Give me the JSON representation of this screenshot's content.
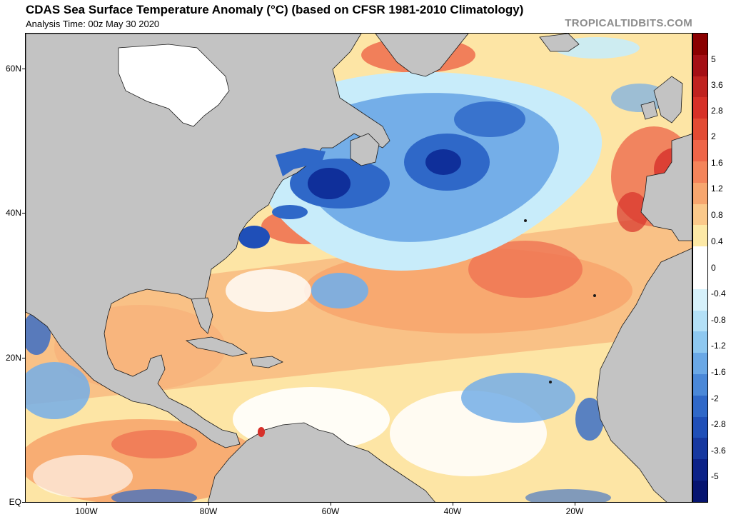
{
  "header": {
    "title": "CDAS Sea Surface Temperature Anomaly (°C) (based on CFSR 1981-2010 Climatology)",
    "subtitle": "Analysis Time: 00z May 30 2020",
    "brand": "TROPICALTIDBITS.COM"
  },
  "axes": {
    "lat_labels": [
      "60N",
      "40N",
      "20N",
      "EQ"
    ],
    "lon_labels": [
      "100W",
      "80W",
      "60W",
      "40W",
      "20W"
    ]
  },
  "colorbar": {
    "labels": [
      "5",
      "3.6",
      "2.8",
      "2",
      "1.6",
      "1.2",
      "0.8",
      "0.4",
      "0",
      "-0.4",
      "-0.8",
      "-1.2",
      "-1.6",
      "-2",
      "-2.8",
      "-3.6",
      "-5"
    ],
    "colors": [
      "#8b0000",
      "#a50f15",
      "#c0221f",
      "#d73027",
      "#e34a33",
      "#ef6548",
      "#f4845a",
      "#f7a66e",
      "#fbc98a",
      "#fde9a6",
      "#ffffff",
      "#ffffff",
      "#d6f1fb",
      "#b3e0f7",
      "#8ec8f0",
      "#6aa8e6",
      "#4a88d8",
      "#2f68c8",
      "#1f4fb8",
      "#1638a0",
      "#0c2288",
      "#061470"
    ]
  },
  "map_colors": {
    "land": "#c3c3c3",
    "ice": "#ffffff",
    "coast": "#1a1a1a",
    "warm_light": "#fde5a5",
    "warm": "#f7b47c",
    "warm_strong": "#ef7352",
    "hot": "#d7302a",
    "cool_light": "#c8ecfa",
    "cool": "#74aee8",
    "cold": "#2f68c8",
    "very_cold": "#0f2f9a"
  }
}
